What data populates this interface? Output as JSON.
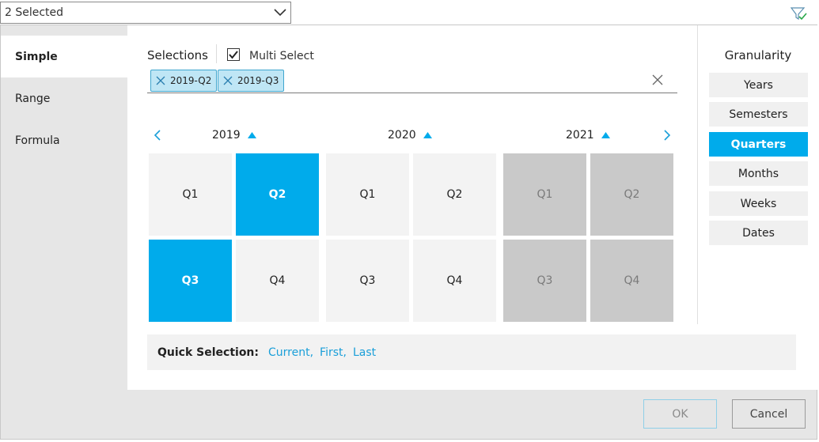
{
  "dropdown": {
    "value": "2 Selected"
  },
  "sidebar": {
    "items": [
      {
        "label": "Simple"
      },
      {
        "label": "Range"
      },
      {
        "label": "Formula"
      }
    ]
  },
  "selections": {
    "label": "Selections",
    "multi_select_label": "Multi Select",
    "multi_select_checked": true,
    "chips": [
      {
        "label": "2019-Q2"
      },
      {
        "label": "2019-Q3"
      }
    ]
  },
  "years": [
    {
      "label": "2019",
      "quarters": [
        {
          "label": "Q1",
          "state": "normal"
        },
        {
          "label": "Q2",
          "state": "selected"
        },
        {
          "label": "Q3",
          "state": "selected"
        },
        {
          "label": "Q4",
          "state": "normal"
        }
      ]
    },
    {
      "label": "2020",
      "quarters": [
        {
          "label": "Q1",
          "state": "normal"
        },
        {
          "label": "Q2",
          "state": "normal"
        },
        {
          "label": "Q3",
          "state": "normal"
        },
        {
          "label": "Q4",
          "state": "normal"
        }
      ]
    },
    {
      "label": "2021",
      "quarters": [
        {
          "label": "Q1",
          "state": "disabled"
        },
        {
          "label": "Q2",
          "state": "disabled"
        },
        {
          "label": "Q3",
          "state": "disabled"
        },
        {
          "label": "Q4",
          "state": "disabled"
        }
      ]
    }
  ],
  "quick_selection": {
    "label": "Quick Selection:",
    "links": [
      {
        "label": "Current"
      },
      {
        "label": "First"
      },
      {
        "label": "Last"
      }
    ]
  },
  "granularity": {
    "title": "Granularity",
    "options": [
      {
        "label": "Years"
      },
      {
        "label": "Semesters"
      },
      {
        "label": "Quarters"
      },
      {
        "label": "Months"
      },
      {
        "label": "Weeks"
      },
      {
        "label": "Dates"
      }
    ],
    "active": "Quarters"
  },
  "footer": {
    "ok_label": "OK",
    "cancel_label": "Cancel"
  },
  "colors": {
    "accent": "#00abeb",
    "link": "#1a9fd9",
    "disabled": "#c9c9c9"
  },
  "icons": {
    "dropdown": "chevron-down-icon",
    "filter": "filter-check-icon",
    "chip_remove": "close-icon",
    "clear": "close-icon",
    "prev": "chevron-left-icon",
    "next": "chevron-right-icon",
    "year_toggle": "triangle-up-icon"
  }
}
